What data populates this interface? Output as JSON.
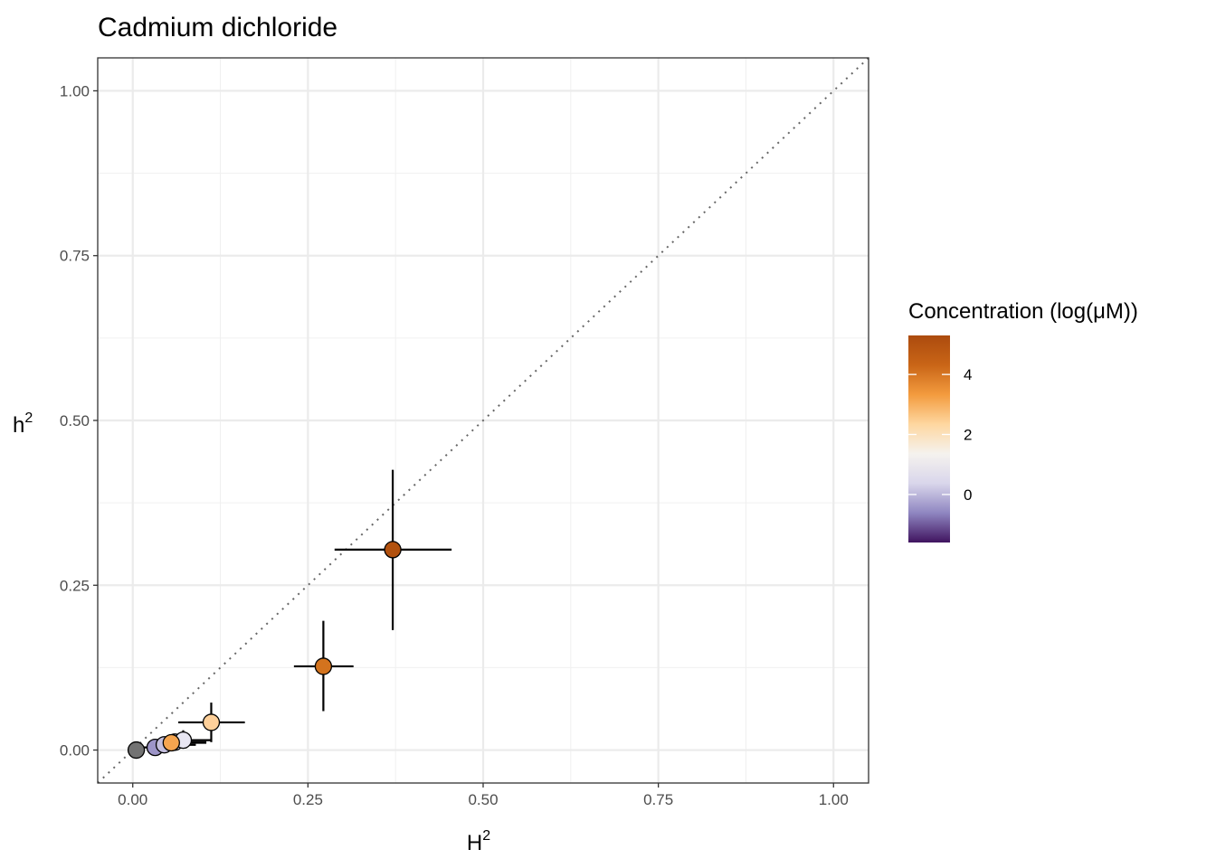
{
  "chart_data": {
    "type": "scatter",
    "title": "Cadmium dichloride",
    "xlabel": "H",
    "xlabel_sup": "2",
    "ylabel": "h",
    "ylabel_sup": "2",
    "xlim": [
      -0.05,
      1.05
    ],
    "ylim": [
      -0.05,
      1.05
    ],
    "x_ticks": [
      0.0,
      0.25,
      0.5,
      0.75,
      1.0
    ],
    "x_tick_labels": [
      "0.00",
      "0.25",
      "0.50",
      "0.75",
      "1.00"
    ],
    "y_ticks": [
      0.0,
      0.25,
      0.5,
      0.75,
      1.0
    ],
    "y_tick_labels": [
      "0.00",
      "0.25",
      "0.50",
      "0.75",
      "1.00"
    ],
    "grid": true,
    "reference_line": {
      "type": "identity",
      "style": "dotted",
      "color": "#666666"
    },
    "legend": {
      "title": "Concentration (log(μM))",
      "type": "colorbar",
      "placement": "right",
      "range": [
        -1.6,
        5.3
      ],
      "ticks": [
        0,
        2,
        4
      ],
      "tick_labels": [
        "0",
        "2",
        "4"
      ],
      "colors": [
        "#40145f",
        "#8f86c1",
        "#d9d6eb",
        "#f5f2ee",
        "#fed7a0",
        "#f39b3e",
        "#c96517",
        "#ac4b0e"
      ]
    },
    "points": [
      {
        "x": 0.005,
        "y": 0.0,
        "xerr": [
          0.005,
          0.005
        ],
        "yerr": [
          0.0,
          0.0
        ],
        "color": "#737373",
        "na": true
      },
      {
        "x": 0.032,
        "y": 0.004,
        "xerr": [
          0.02,
          0.045
        ],
        "yerr": [
          0.003,
          0.006
        ],
        "color": "#9d95c8"
      },
      {
        "x": 0.045,
        "y": 0.008,
        "xerr": [
          0.02,
          0.045
        ],
        "yerr": [
          0.006,
          0.01
        ],
        "color": "#c3bedd"
      },
      {
        "x": 0.06,
        "y": 0.012,
        "xerr": [
          0.02,
          0.045
        ],
        "yerr": [
          0.01,
          0.012
        ],
        "color": "#d8d5ea"
      },
      {
        "x": 0.072,
        "y": 0.015,
        "xerr": [
          0.02,
          0.04
        ],
        "yerr": [
          0.012,
          0.015
        ],
        "color": "#e8e6f2"
      },
      {
        "x": 0.055,
        "y": 0.011,
        "xerr": [
          0.02,
          0.05
        ],
        "yerr": [
          0.008,
          0.008
        ],
        "color": "#f5a54f"
      },
      {
        "x": 0.112,
        "y": 0.042,
        "xerr": [
          0.047,
          0.048
        ],
        "yerr": [
          0.03,
          0.03
        ],
        "color": "#fed09a"
      },
      {
        "x": 0.272,
        "y": 0.127,
        "xerr": [
          0.042,
          0.043
        ],
        "yerr": [
          0.068,
          0.069
        ],
        "color": "#d3731e"
      },
      {
        "x": 0.371,
        "y": 0.304,
        "xerr": [
          0.083,
          0.084
        ],
        "yerr": [
          0.122,
          0.121
        ],
        "color": "#b2510e"
      }
    ]
  }
}
